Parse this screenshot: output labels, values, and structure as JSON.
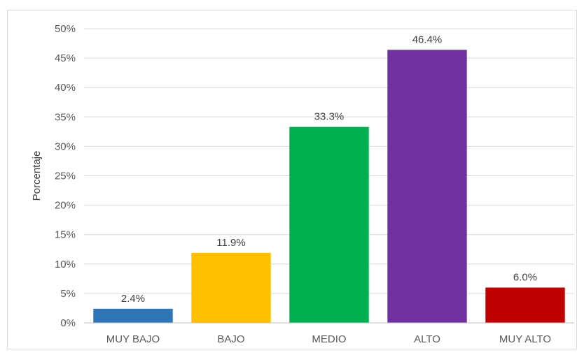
{
  "chart_data": {
    "type": "bar",
    "title": "",
    "xlabel": "",
    "ylabel": "Porcentaje",
    "categories": [
      "MUY BAJO",
      "BAJO",
      "MEDIO",
      "ALTO",
      "MUY ALTO"
    ],
    "values": [
      2.4,
      11.9,
      33.3,
      46.4,
      6.0
    ],
    "data_labels": [
      "2.4%",
      "11.9%",
      "33.3%",
      "46.4%",
      "6.0%"
    ],
    "bar_colors": [
      "#2e75b6",
      "#ffc000",
      "#00b050",
      "#7030a0",
      "#c00000"
    ],
    "ylim": [
      0,
      50
    ],
    "yticks": [
      0,
      5,
      10,
      15,
      20,
      25,
      30,
      35,
      40,
      45,
      50
    ],
    "ytick_labels": [
      "0%",
      "5%",
      "10%",
      "15%",
      "20%",
      "25%",
      "30%",
      "35%",
      "40%",
      "45%",
      "50%"
    ],
    "grid": true,
    "legend": "none"
  }
}
